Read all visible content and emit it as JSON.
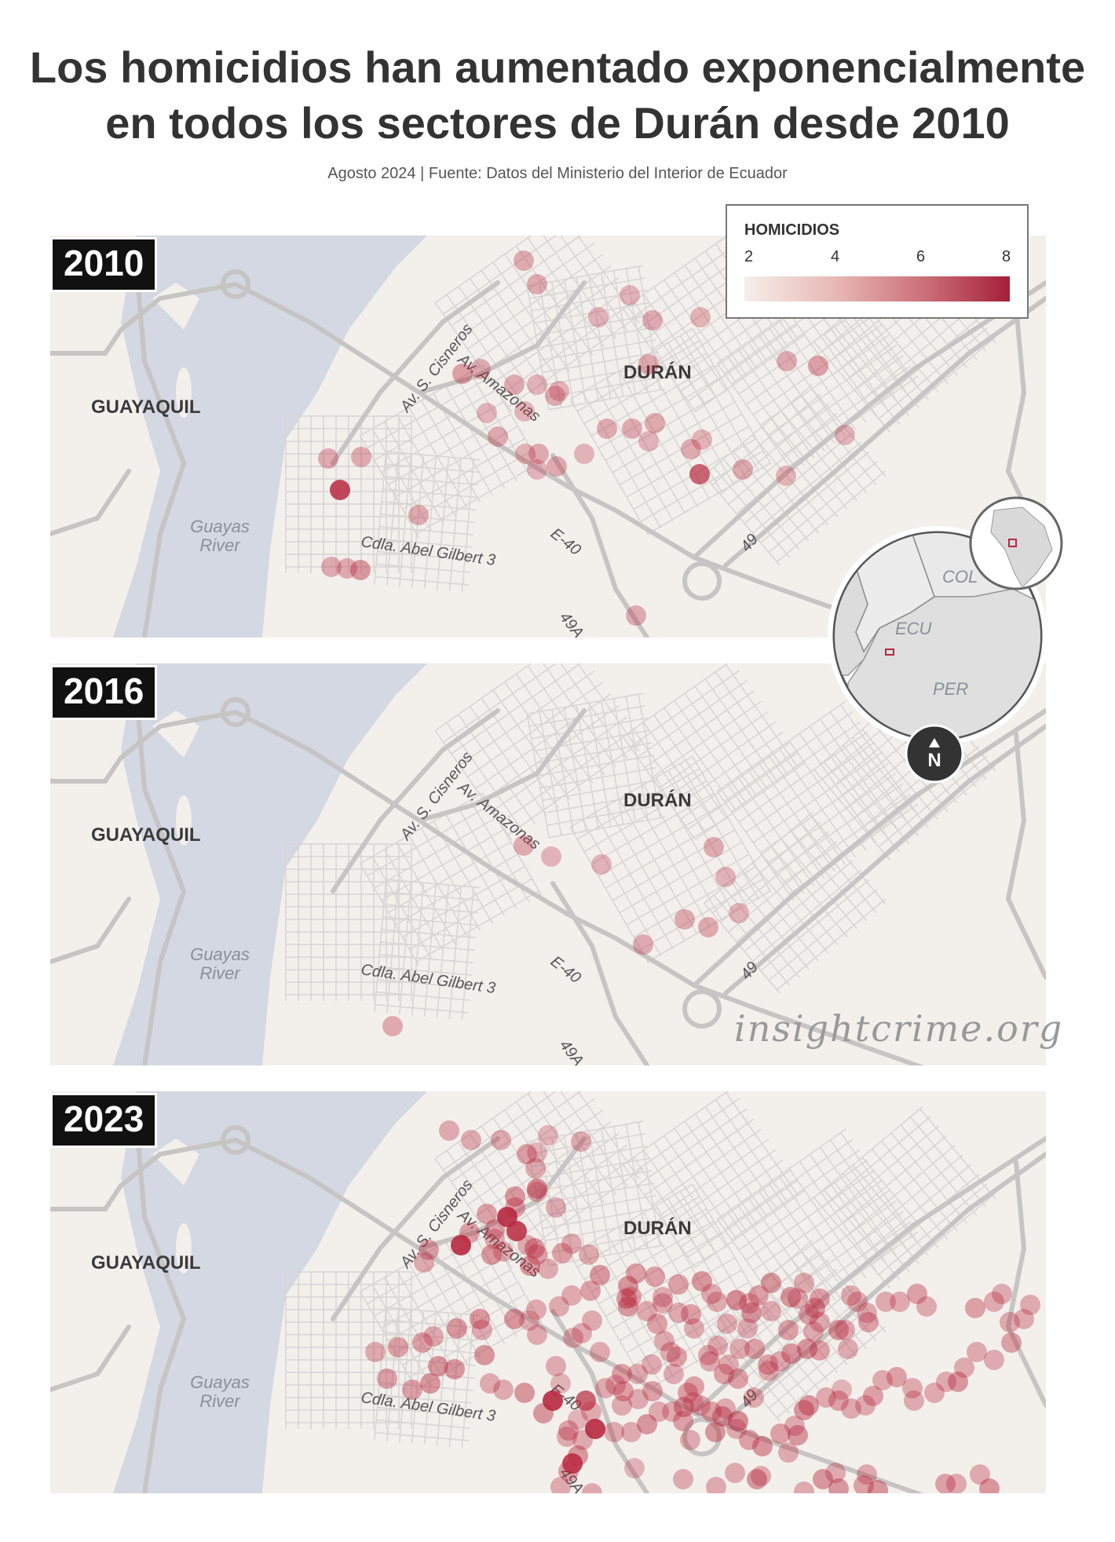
{
  "title": {
    "line1": "Los homicidios han aumentado exponencialmente",
    "line2": "en todos los sectores de Durán desde 2010"
  },
  "subtitle": "Agosto 2024 | Fuente: Datos del Ministerio del Interior de Ecuador",
  "legend": {
    "title": "HOMICIDIOS",
    "ticks": [
      "2",
      "4",
      "6",
      "8"
    ],
    "colors": {
      "low": "#f5efec",
      "high": "#a51f3a"
    }
  },
  "labels": {
    "guayaquil": "GUAYAQUIL",
    "duran": "DURÁN",
    "river_line1": "Guayas",
    "river_line2": "River",
    "cisneros": "Av. S. Cisneros",
    "amazonas": "Av. Amazonas",
    "abel_gilbert": "Cdla. Abel Gilbert 3",
    "e40": "E-40",
    "r49": "49",
    "r49a": "49A"
  },
  "locator": {
    "col": "COL",
    "ecu": "ECU",
    "per": "PER",
    "north": "N"
  },
  "watermark": "insightcrime.org",
  "panels": [
    {
      "year": "2010"
    },
    {
      "year": "2016"
    },
    {
      "year": "2023"
    }
  ],
  "colors": {
    "land": "#f3f0ec",
    "water": "#d3d8e2",
    "road": "#c7c5c3",
    "street": "#d8d6d4",
    "marker": "#b8283f"
  }
}
